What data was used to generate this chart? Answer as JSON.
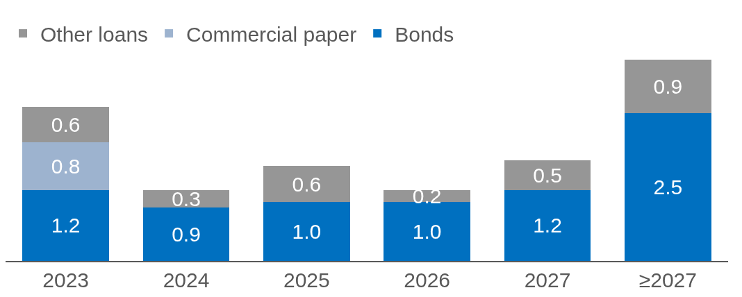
{
  "chart_data": {
    "type": "bar",
    "stacked": true,
    "legend": "top left",
    "categories": [
      "2023",
      "2024",
      "2025",
      "2026",
      "2027",
      "≥2027"
    ],
    "series": [
      {
        "name": "Bonds",
        "color": "#0070c0",
        "values": [
          1.2,
          0.9,
          1.0,
          1.0,
          1.2,
          2.5
        ],
        "value_labels": [
          "1.2",
          "0.9",
          "1.0",
          "1.0",
          "1.2",
          "2.5"
        ]
      },
      {
        "name": "Commercial paper",
        "color": "#9db3cf",
        "values": [
          0.8,
          null,
          null,
          null,
          null,
          null
        ],
        "value_labels": [
          "0.8",
          null,
          null,
          null,
          null,
          null
        ]
      },
      {
        "name": "Other loans",
        "color": "#969696",
        "values": [
          0.6,
          0.3,
          0.6,
          0.2,
          0.5,
          0.9
        ],
        "value_labels": [
          "0.6",
          "0.3",
          "0.6",
          "0.2",
          "0.5",
          "0.9"
        ]
      }
    ]
  }
}
